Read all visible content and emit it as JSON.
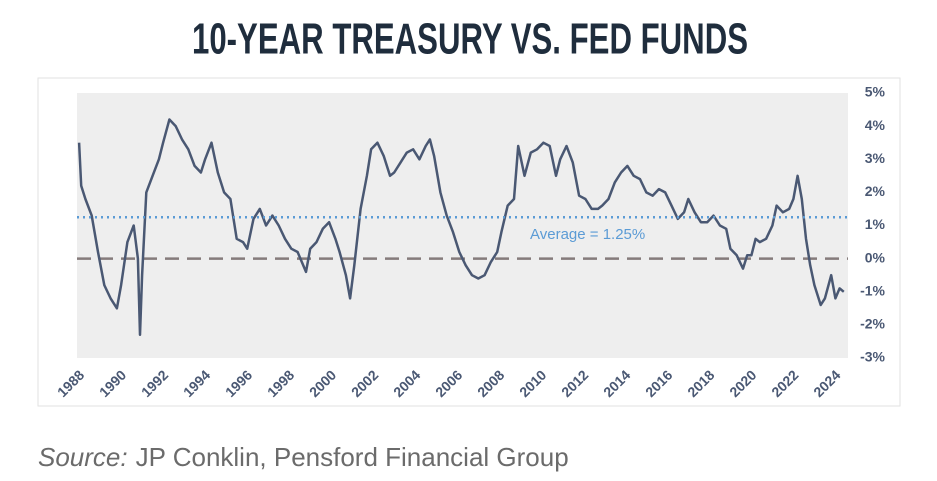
{
  "chart_data": {
    "type": "line",
    "title": "10-YEAR TREASURY VS. FED FUNDS",
    "source_label": "Source:",
    "source": "JP Conklin, Pensford Financial Group",
    "annotation": "Average = 1.25%",
    "average": 1.25,
    "xlim": [
      1987.9,
      2024.6
    ],
    "xticks": [
      1988,
      1990,
      1992,
      1994,
      1996,
      1998,
      2000,
      2002,
      2004,
      2006,
      2008,
      2010,
      2012,
      2014,
      2016,
      2018,
      2020,
      2022,
      2024
    ],
    "ylim": [
      -3,
      5
    ],
    "yticks": [
      {
        "value": -3,
        "label": "-3%"
      },
      {
        "value": -2,
        "label": "-2%"
      },
      {
        "value": -1,
        "label": "-1%"
      },
      {
        "value": 0,
        "label": "0%"
      },
      {
        "value": 1,
        "label": "1%"
      },
      {
        "value": 2,
        "label": "2%"
      },
      {
        "value": 3,
        "label": "3%"
      },
      {
        "value": 4,
        "label": "4%"
      },
      {
        "value": 5,
        "label": "5%"
      }
    ],
    "series": [
      {
        "color": "#4a5873",
        "x": [
          1988.0,
          1988.1,
          1988.3,
          1988.6,
          1988.9,
          1989.2,
          1989.5,
          1989.8,
          1990.0,
          1990.3,
          1990.6,
          1990.8,
          1990.9,
          1991.0,
          1991.2,
          1991.5,
          1991.8,
          1992.0,
          1992.3,
          1992.6,
          1992.9,
          1993.2,
          1993.5,
          1993.8,
          1994.0,
          1994.3,
          1994.6,
          1994.9,
          1995.2,
          1995.5,
          1995.8,
          1996.0,
          1996.3,
          1996.6,
          1996.9,
          1997.2,
          1997.5,
          1997.8,
          1998.1,
          1998.4,
          1998.8,
          1999.0,
          1999.3,
          1999.6,
          1999.9,
          2000.2,
          2000.4,
          2000.7,
          2000.9,
          2001.1,
          2001.4,
          2001.7,
          2001.9,
          2002.2,
          2002.5,
          2002.8,
          2003.0,
          2003.3,
          2003.6,
          2003.9,
          2004.2,
          2004.5,
          2004.7,
          2004.9,
          2005.2,
          2005.5,
          2005.8,
          2006.1,
          2006.4,
          2006.7,
          2007.0,
          2007.3,
          2007.6,
          2007.9,
          2008.1,
          2008.4,
          2008.7,
          2008.9,
          2009.2,
          2009.5,
          2009.8,
          2010.1,
          2010.4,
          2010.7,
          2010.9,
          2011.2,
          2011.5,
          2011.8,
          2012.1,
          2012.4,
          2012.7,
          2012.9,
          2013.2,
          2013.5,
          2013.8,
          2014.1,
          2014.4,
          2014.7,
          2015.0,
          2015.3,
          2015.6,
          2015.9,
          2016.2,
          2016.5,
          2016.8,
          2017.0,
          2017.3,
          2017.6,
          2017.9,
          2018.2,
          2018.5,
          2018.8,
          2019.0,
          2019.3,
          2019.6,
          2019.8,
          2020.0,
          2020.2,
          2020.4,
          2020.7,
          2021.0,
          2021.2,
          2021.5,
          2021.8,
          2022.0,
          2022.2,
          2022.4,
          2022.6,
          2022.8,
          2023.0,
          2023.3,
          2023.5,
          2023.8,
          2024.0,
          2024.2,
          2024.4
        ],
        "values": [
          3.5,
          2.2,
          1.8,
          1.3,
          0.2,
          -0.8,
          -1.2,
          -1.5,
          -0.8,
          0.5,
          1.0,
          0.0,
          -2.3,
          -0.5,
          2.0,
          2.5,
          3.0,
          3.5,
          4.2,
          4.0,
          3.6,
          3.3,
          2.8,
          2.6,
          3.0,
          3.5,
          2.6,
          2.0,
          1.8,
          0.6,
          0.5,
          0.3,
          1.2,
          1.5,
          1.0,
          1.3,
          1.0,
          0.6,
          0.3,
          0.2,
          -0.4,
          0.3,
          0.5,
          0.9,
          1.1,
          0.6,
          0.2,
          -0.5,
          -1.2,
          -0.2,
          1.5,
          2.5,
          3.3,
          3.5,
          3.1,
          2.5,
          2.6,
          2.9,
          3.2,
          3.3,
          3.0,
          3.4,
          3.6,
          3.1,
          2.0,
          1.3,
          0.8,
          0.2,
          -0.2,
          -0.5,
          -0.6,
          -0.5,
          -0.1,
          0.2,
          0.8,
          1.6,
          1.8,
          3.4,
          2.5,
          3.2,
          3.3,
          3.5,
          3.4,
          2.5,
          3.0,
          3.4,
          2.9,
          1.9,
          1.8,
          1.5,
          1.5,
          1.6,
          1.8,
          2.3,
          2.6,
          2.8,
          2.5,
          2.4,
          2.0,
          1.9,
          2.1,
          2.0,
          1.6,
          1.2,
          1.4,
          1.8,
          1.4,
          1.1,
          1.1,
          1.3,
          1.0,
          0.9,
          0.3,
          0.1,
          -0.3,
          0.1,
          0.1,
          0.6,
          0.5,
          0.6,
          1.0,
          1.6,
          1.4,
          1.5,
          1.8,
          2.5,
          1.8,
          0.6,
          -0.2,
          -0.8,
          -1.4,
          -1.2,
          -0.5,
          -1.2,
          -0.9,
          -1.0
        ]
      }
    ]
  }
}
